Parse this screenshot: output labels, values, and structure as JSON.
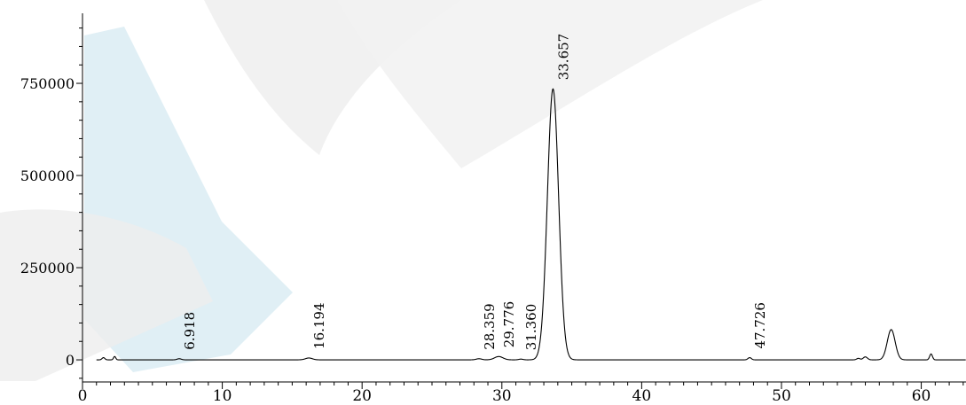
{
  "chart_data": {
    "type": "line",
    "title": "",
    "xlabel": "",
    "ylabel": "",
    "xlim": [
      0,
      63.2
    ],
    "ylim": [
      -60000,
      940000
    ],
    "x_ticks": [
      0,
      10,
      20,
      30,
      40,
      50,
      60
    ],
    "y_ticks": [
      0,
      250000,
      500000,
      750000
    ],
    "x_tick_labels": [
      "0",
      "10",
      "20",
      "30",
      "40",
      "50",
      "60"
    ],
    "y_tick_labels": [
      "0",
      "250000",
      "500000",
      "750000"
    ],
    "grid": false,
    "series": [
      {
        "line_color": "#000000",
        "peaks": [
          {
            "rt": 1.5,
            "height": 6000,
            "width": 0.1
          },
          {
            "rt": 2.3,
            "height": 9000,
            "width": 0.08
          },
          {
            "rt": 6.918,
            "height": 3000,
            "width": 0.15
          },
          {
            "rt": 16.194,
            "height": 5000,
            "width": 0.25
          },
          {
            "rt": 28.359,
            "height": 3000,
            "width": 0.2
          },
          {
            "rt": 29.776,
            "height": 9000,
            "width": 0.3
          },
          {
            "rt": 31.36,
            "height": 2000,
            "width": 0.15
          },
          {
            "rt": 33.657,
            "height": 735000,
            "width": 0.4
          },
          {
            "rt": 47.726,
            "height": 6000,
            "width": 0.12
          },
          {
            "rt": 55.5,
            "height": 4000,
            "width": 0.12
          },
          {
            "rt": 56.0,
            "height": 8000,
            "width": 0.15
          },
          {
            "rt": 57.85,
            "height": 82000,
            "width": 0.28
          },
          {
            "rt": 60.7,
            "height": 16000,
            "width": 0.1
          }
        ]
      }
    ],
    "peak_labels": [
      {
        "rt": 6.918,
        "label": "6.918"
      },
      {
        "rt": 16.194,
        "label": "16.194"
      },
      {
        "rt": 28.359,
        "label": "28.359"
      },
      {
        "rt": 29.776,
        "label": "29.776"
      },
      {
        "rt": 31.36,
        "label": "31.360"
      },
      {
        "rt": 33.657,
        "label": "33.657"
      },
      {
        "rt": 47.726,
        "label": "47.726"
      }
    ]
  }
}
